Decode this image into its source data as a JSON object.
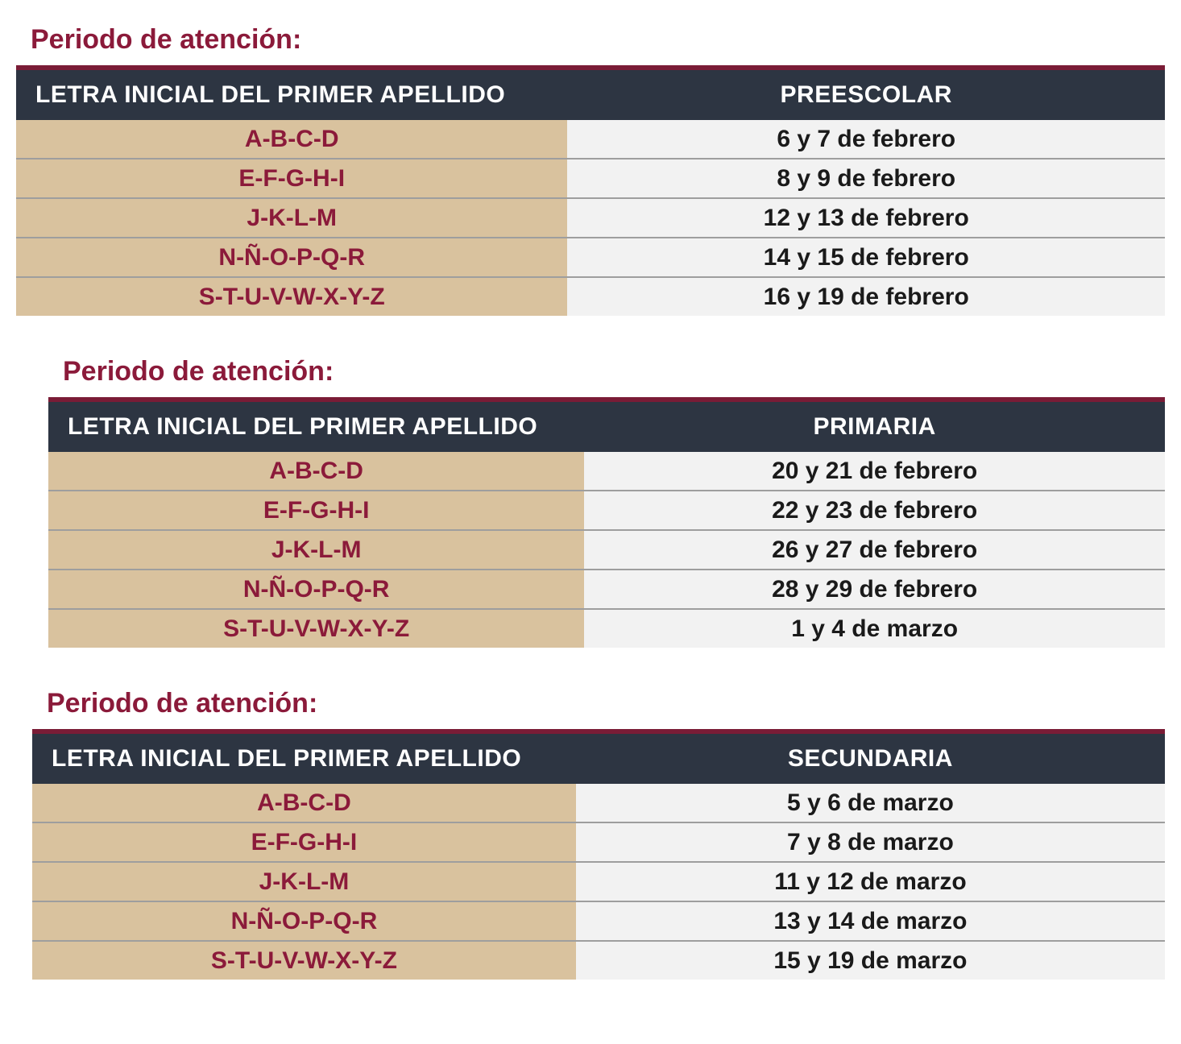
{
  "colors": {
    "title": "#8b1a3a",
    "header_bg": "#2d3542",
    "header_border_top": "#7a1c36",
    "letters_bg": "#d9c29e",
    "letters_text": "#8b1a3a",
    "dates_bg": "#f2f2f2",
    "dates_text": "#1a1a1a",
    "row_divider": "#9e9e9e"
  },
  "section_title": "Periodo de atención:",
  "header_left": "LETRA INICIAL DEL PRIMER APELLIDO",
  "tables": [
    {
      "indent": "",
      "header_right": "PREESCOLAR",
      "rows": [
        {
          "letters": "A-B-C-D",
          "dates": "6 y 7 de febrero"
        },
        {
          "letters": "E-F-G-H-I",
          "dates": "8 y 9 de febrero"
        },
        {
          "letters": "J-K-L-M",
          "dates": "12 y 13 de febrero"
        },
        {
          "letters": "N-Ñ-O-P-Q-R",
          "dates": "14 y 15 de febrero"
        },
        {
          "letters": "S-T-U-V-W-X-Y-Z",
          "dates": "16 y 19 de febrero"
        }
      ]
    },
    {
      "indent": "indent-1",
      "header_right": "PRIMARIA",
      "rows": [
        {
          "letters": "A-B-C-D",
          "dates": "20 y 21 de febrero"
        },
        {
          "letters": "E-F-G-H-I",
          "dates": "22 y 23 de febrero"
        },
        {
          "letters": "J-K-L-M",
          "dates": "26 y 27 de febrero"
        },
        {
          "letters": "N-Ñ-O-P-Q-R",
          "dates": "28 y 29 de febrero"
        },
        {
          "letters": "S-T-U-V-W-X-Y-Z",
          "dates": "1 y 4 de marzo"
        }
      ]
    },
    {
      "indent": "indent-2",
      "header_right": "SECUNDARIA",
      "rows": [
        {
          "letters": "A-B-C-D",
          "dates": "5 y 6 de marzo"
        },
        {
          "letters": "E-F-G-H-I",
          "dates": "7 y 8 de marzo"
        },
        {
          "letters": "J-K-L-M",
          "dates": "11 y 12 de marzo"
        },
        {
          "letters": "N-Ñ-O-P-Q-R",
          "dates": "13 y 14 de marzo"
        },
        {
          "letters": "S-T-U-V-W-X-Y-Z",
          "dates": "15 y 19 de marzo"
        }
      ]
    }
  ]
}
